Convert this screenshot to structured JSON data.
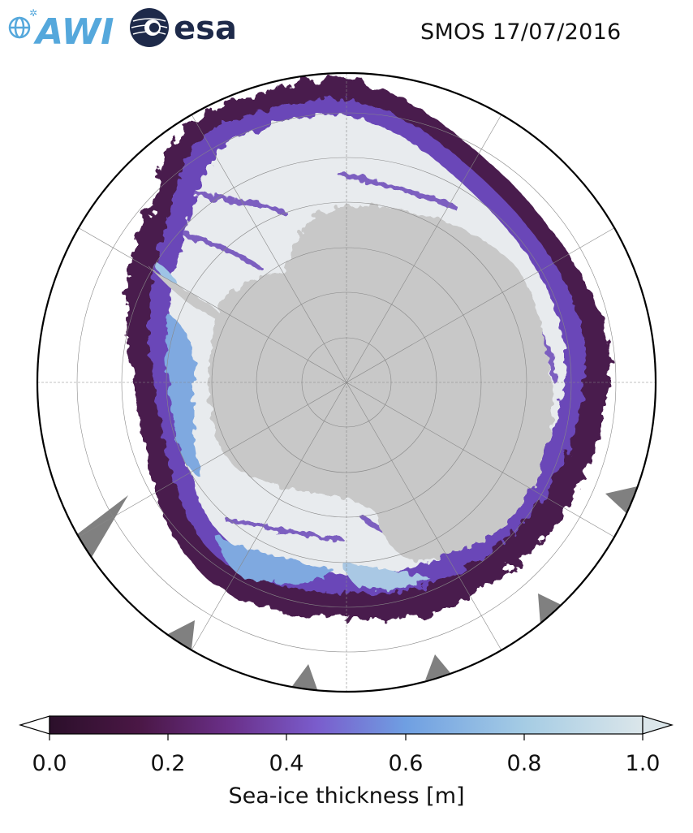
{
  "header": {
    "logo_awi": "AWI",
    "logo_esa": "esa",
    "title": "SMOS 17/07/2016"
  },
  "map": {
    "projection": "south-polar-stereographic",
    "region": "Antarctica",
    "land_color": "#c8c8c8",
    "ocean_color": "#ffffff",
    "graticule_color": "#888888",
    "missing_data_color": "#808080"
  },
  "colorbar": {
    "label": "Sea-ice thickness [m]",
    "ticks": [
      "0.0",
      "0.2",
      "0.4",
      "0.6",
      "0.8",
      "1.0"
    ],
    "vmin": 0.0,
    "vmax": 1.0,
    "extend": "both",
    "colormap_stops": [
      "#2b0f2a",
      "#5a1d5e",
      "#7a3a9a",
      "#7468d2",
      "#6f9fe2",
      "#a5cce4",
      "#dbe6ea"
    ]
  }
}
